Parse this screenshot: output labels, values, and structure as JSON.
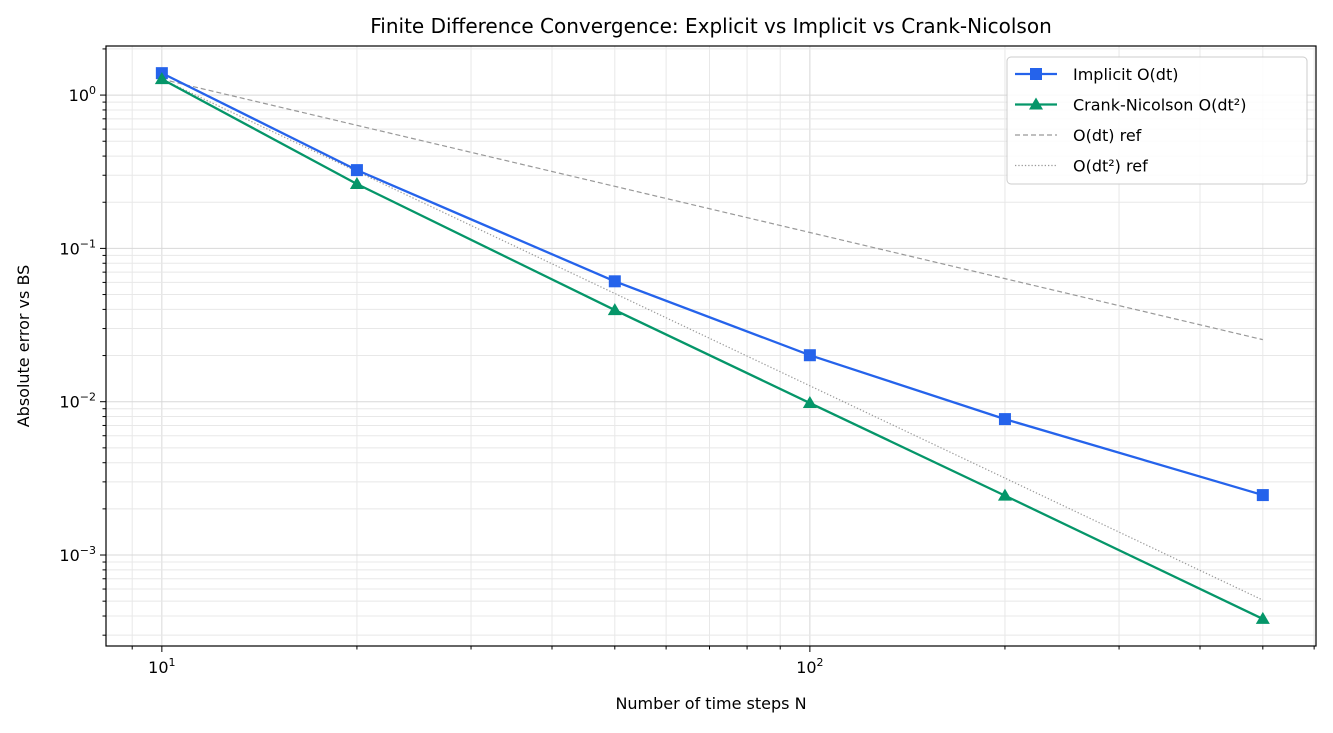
{
  "chart_data": {
    "type": "line",
    "title": "Finite Difference Convergence: Explicit vs Implicit vs Crank-Nicolson",
    "xlabel": "Number of time steps N",
    "ylabel": "Absolute error vs BS",
    "xscale": "log",
    "yscale": "log",
    "xlim": [
      8.2,
      604
    ],
    "ylim": [
      0.000255,
      2.09
    ],
    "x_ticks": [
      {
        "value": 10,
        "base": "10",
        "exp": "1"
      },
      {
        "value": 100,
        "base": "10",
        "exp": "2"
      }
    ],
    "y_ticks": [
      {
        "value": 1,
        "base": "10",
        "exp": "0"
      },
      {
        "value": 0.1,
        "base": "10",
        "exp": "−1"
      },
      {
        "value": 0.01,
        "base": "10",
        "exp": "−2"
      },
      {
        "value": 0.001,
        "base": "10",
        "exp": "−3"
      }
    ],
    "grid": "major and minor, both axes",
    "legend_position": "top-right",
    "x": [
      10,
      20,
      50,
      100,
      200,
      500
    ],
    "series": [
      {
        "name": "Implicit O(dt)",
        "color": "#2563eb",
        "marker": "square",
        "style": "solid",
        "values": [
          1.39,
          0.324,
          0.061,
          0.0201,
          0.0077,
          0.00246
        ]
      },
      {
        "name": "Crank-Nicolson O(dt²)",
        "color": "#059669",
        "marker": "triangle",
        "style": "solid",
        "values": [
          1.27,
          0.263,
          0.0396,
          0.0098,
          0.00244,
          0.000383
        ]
      },
      {
        "name": "O(dt) ref",
        "color": "#999999",
        "marker": "none",
        "style": "dashed",
        "values": [
          1.27,
          0.635,
          0.254,
          0.127,
          0.0635,
          0.0254
        ]
      },
      {
        "name": "O(dt²) ref",
        "color": "#999999",
        "marker": "none",
        "style": "dotted",
        "values": [
          1.27,
          0.3175,
          0.0508,
          0.0127,
          0.003175,
          0.000508
        ]
      }
    ]
  }
}
